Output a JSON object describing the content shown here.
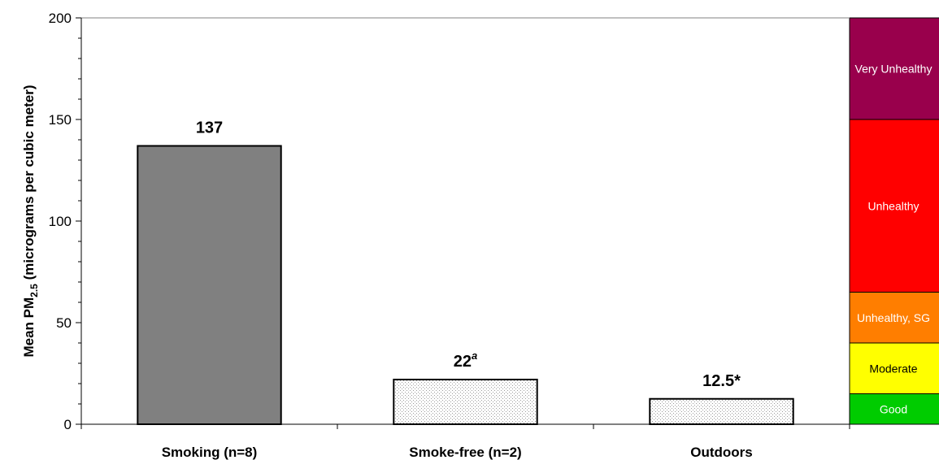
{
  "chart_data": {
    "type": "bar",
    "title": "",
    "ylabel": {
      "prefix": "Mean PM",
      "subscript": "2.5",
      "suffix": " (micrograms per cubic meter)"
    },
    "xlabel": "",
    "ylim": [
      0,
      200
    ],
    "yticks": [
      0,
      50,
      100,
      150,
      200
    ],
    "grid": false,
    "categories": [
      "Smoking (n=8)",
      "Smoke-free (n=2)",
      "Outdoors"
    ],
    "values": [
      137,
      22,
      12.5
    ],
    "data_labels": [
      {
        "main": "137",
        "superscript": ""
      },
      {
        "main": "22",
        "superscript": "a"
      },
      {
        "main": "12.5*",
        "superscript": ""
      }
    ],
    "bar_fills": [
      "solid-gray",
      "dotted",
      "dotted"
    ],
    "colors": {
      "solid_bar": "#808080",
      "dotted_bar_bg": "#ffffff",
      "dotted_bar_dots": "#9a9a9a"
    },
    "aqi_bands": [
      {
        "label": "Good",
        "from": 0,
        "to": 15,
        "color": "#00cc00",
        "text_color": "#ffffff"
      },
      {
        "label": "Moderate",
        "from": 15,
        "to": 40,
        "color": "#ffff00",
        "text_color": "#000000"
      },
      {
        "label": "Unhealthy, SG",
        "from": 40,
        "to": 65,
        "color": "#ff7e00",
        "text_color": "#ffffff"
      },
      {
        "label": "Unhealthy",
        "from": 65,
        "to": 150,
        "color": "#ff0000",
        "text_color": "#ffffff"
      },
      {
        "label": "Very Unhealthy",
        "from": 150,
        "to": 200,
        "color": "#99004c",
        "text_color": "#ffffff"
      }
    ]
  }
}
